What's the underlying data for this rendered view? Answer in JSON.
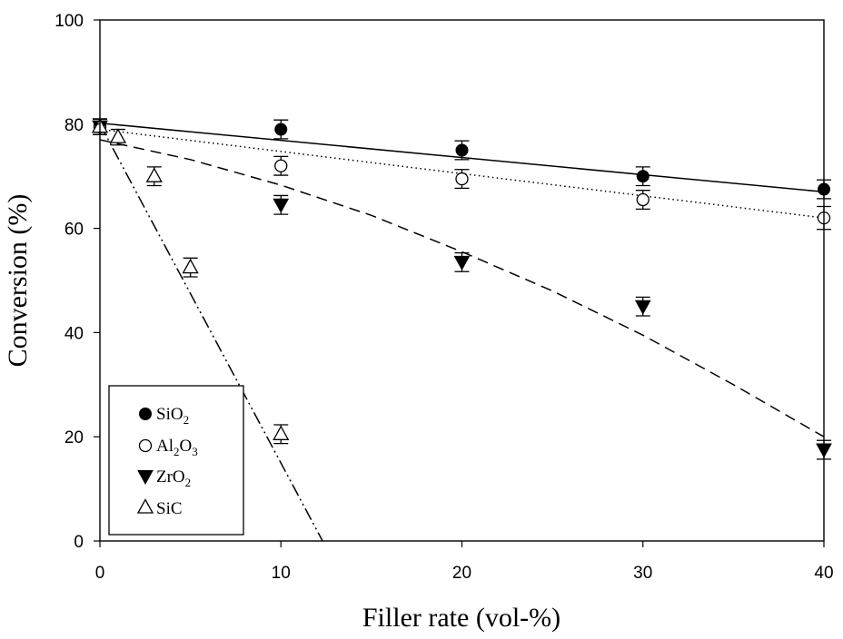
{
  "chart_data": {
    "type": "scatter",
    "title": "",
    "xlabel": "Filler rate (vol-%)",
    "ylabel": "Conversion (%)",
    "xlim": [
      0,
      40
    ],
    "ylim": [
      0,
      100
    ],
    "xticks": [
      0,
      10,
      20,
      30,
      40
    ],
    "yticks": [
      0,
      20,
      40,
      60,
      80,
      100
    ],
    "grid": false,
    "legend_position": "bottom-left",
    "series": [
      {
        "name": "SiO2",
        "label_main": "SiO",
        "label_sub": "2",
        "marker": "filled-circle",
        "line_style": "solid",
        "points": [
          {
            "x": 0,
            "y": 79.5,
            "err": 1.5
          },
          {
            "x": 10,
            "y": 79,
            "err": 1.8
          },
          {
            "x": 20,
            "y": 75,
            "err": 1.8
          },
          {
            "x": 30,
            "y": 70,
            "err": 1.8
          },
          {
            "x": 40,
            "y": 67.5,
            "err": 1.8
          }
        ],
        "fit": [
          {
            "x": 0,
            "y": 80.2
          },
          {
            "x": 40,
            "y": 67
          }
        ]
      },
      {
        "name": "Al2O3",
        "label_parts": [
          "Al",
          "2",
          "O",
          "3"
        ],
        "marker": "open-circle",
        "line_style": "dotted",
        "points": [
          {
            "x": 0,
            "y": 79.5,
            "err": 1.5
          },
          {
            "x": 10,
            "y": 72,
            "err": 1.8
          },
          {
            "x": 20,
            "y": 69.5,
            "err": 1.8
          },
          {
            "x": 30,
            "y": 65.5,
            "err": 1.8
          },
          {
            "x": 40,
            "y": 62,
            "err": 2.2
          }
        ],
        "fit": [
          {
            "x": 0,
            "y": 79
          },
          {
            "x": 40,
            "y": 62
          }
        ]
      },
      {
        "name": "ZrO2",
        "label_main": "ZrO",
        "label_sub": "2",
        "marker": "filled-triangle-down",
        "line_style": "dashed",
        "points": [
          {
            "x": 0,
            "y": 79.5,
            "err": 1.5
          },
          {
            "x": 10,
            "y": 64.5,
            "err": 1.8
          },
          {
            "x": 20,
            "y": 53.5,
            "err": 1.8
          },
          {
            "x": 30,
            "y": 45,
            "err": 1.8
          },
          {
            "x": 40,
            "y": 17.5,
            "err": 1.8
          }
        ],
        "fit": [
          {
            "x": 0,
            "y": 77
          },
          {
            "x": 5,
            "y": 73.2
          },
          {
            "x": 10,
            "y": 68.3
          },
          {
            "x": 15,
            "y": 62.5
          },
          {
            "x": 20,
            "y": 55.5
          },
          {
            "x": 25,
            "y": 48
          },
          {
            "x": 30,
            "y": 39.5
          },
          {
            "x": 35,
            "y": 30
          },
          {
            "x": 40,
            "y": 20
          }
        ]
      },
      {
        "name": "SiC",
        "label_main": "SiC",
        "marker": "open-triangle-up",
        "line_style": "dash-dot-dot",
        "points": [
          {
            "x": 0,
            "y": 79.5,
            "err": 1.5
          },
          {
            "x": 1,
            "y": 77.5,
            "err": 1.5
          },
          {
            "x": 3,
            "y": 70,
            "err": 1.8
          },
          {
            "x": 5,
            "y": 52.5,
            "err": 1.8
          },
          {
            "x": 10,
            "y": 20.5,
            "err": 1.8
          }
        ],
        "fit": [
          {
            "x": 0,
            "y": 80
          },
          {
            "x": 12.3,
            "y": 0
          }
        ]
      }
    ]
  }
}
